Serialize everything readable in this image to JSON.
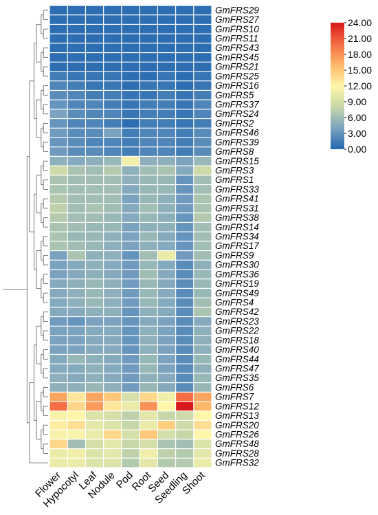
{
  "chart_data": {
    "type": "heatmap",
    "title": "",
    "columns": [
      "Flower",
      "Hypocotyl",
      "Leaf",
      "Nodule",
      "Pod",
      "Root",
      "Seed",
      "Seedling",
      "Shoot"
    ],
    "rows": [
      "GmFRS29",
      "GmFRS27",
      "GmFRS10",
      "GmFRS11",
      "GmFRS43",
      "GmFRS45",
      "GmFRS21",
      "GmFRS25",
      "GmFRS16",
      "GmFRS5",
      "GmFRS37",
      "GmFRS24",
      "GmFRS2",
      "GmFRS46",
      "GmFRS39",
      "GmFRS8",
      "GmFRS15",
      "GmFRS3",
      "GmFRS1",
      "GmFRS33",
      "GmFRS41",
      "GmFRS31",
      "GmFRS38",
      "GmFRS14",
      "GmFRS34",
      "GmFRS17",
      "GmFRS9",
      "GmFRS30",
      "GmFRS36",
      "GmFRS19",
      "GmFRS49",
      "GmFRS4",
      "GmFRS42",
      "GmFRS23",
      "GmFRS22",
      "GmFRS18",
      "GmFRS40",
      "GmFRS44",
      "GmFRS47",
      "GmFRS35",
      "GmFRS6",
      "GmFRS7",
      "GmFRS12",
      "GmFRS13",
      "GmFRS20",
      "GmFRS26",
      "GmFRS48",
      "GmFRS28",
      "GmFRS32"
    ],
    "values": [
      [
        0.5,
        0.5,
        0.5,
        0.5,
        0.5,
        0.5,
        0.5,
        0.5,
        0.5
      ],
      [
        0.5,
        0.5,
        0.5,
        0.5,
        0.5,
        0.5,
        0.5,
        0.5,
        0.5
      ],
      [
        0.5,
        0.5,
        0.5,
        0.5,
        0.5,
        0.5,
        0.5,
        0.5,
        0.5
      ],
      [
        0.5,
        0.5,
        0.5,
        0.5,
        0.5,
        0.5,
        0.5,
        0.5,
        0.5
      ],
      [
        0.5,
        0.5,
        0.5,
        0.5,
        0.5,
        0.5,
        0.5,
        0.5,
        0.5
      ],
      [
        0.5,
        0.5,
        0.5,
        0.5,
        0.5,
        0.5,
        0.5,
        0.5,
        0.5
      ],
      [
        0.5,
        0.5,
        0.5,
        0.5,
        0.5,
        0.5,
        0.5,
        0.5,
        0.5
      ],
      [
        1.5,
        1.0,
        1.0,
        1.0,
        0.5,
        0.5,
        1.0,
        0.5,
        1.0
      ],
      [
        2.0,
        1.5,
        1.0,
        1.0,
        0.5,
        1.0,
        1.0,
        0.5,
        1.0
      ],
      [
        2.5,
        2.0,
        1.5,
        1.5,
        1.0,
        1.0,
        1.5,
        1.0,
        1.5
      ],
      [
        3.0,
        2.0,
        2.0,
        1.5,
        1.0,
        1.5,
        1.5,
        1.0,
        2.0
      ],
      [
        4.0,
        2.5,
        2.0,
        2.0,
        1.0,
        1.5,
        1.5,
        1.0,
        2.0
      ],
      [
        3.0,
        2.0,
        2.0,
        1.5,
        0.5,
        1.5,
        1.5,
        1.0,
        1.5
      ],
      [
        3.5,
        2.5,
        2.5,
        4.0,
        1.5,
        2.0,
        2.0,
        1.5,
        2.5
      ],
      [
        3.0,
        2.5,
        2.0,
        2.0,
        1.5,
        2.0,
        2.0,
        1.5,
        2.5
      ],
      [
        3.5,
        2.5,
        2.5,
        2.0,
        1.5,
        2.0,
        2.0,
        1.5,
        2.5
      ],
      [
        5.0,
        4.5,
        5.0,
        5.5,
        11.0,
        5.0,
        5.0,
        4.0,
        5.5
      ],
      [
        8.5,
        6.5,
        6.0,
        7.0,
        5.0,
        6.0,
        6.5,
        4.5,
        8.5
      ],
      [
        6.5,
        6.0,
        6.0,
        6.0,
        5.0,
        5.5,
        5.5,
        3.0,
        6.0
      ],
      [
        6.5,
        6.0,
        6.0,
        6.0,
        4.5,
        5.5,
        5.5,
        3.0,
        6.0
      ],
      [
        7.0,
        6.0,
        6.0,
        6.0,
        4.0,
        5.5,
        5.0,
        3.5,
        6.5
      ],
      [
        7.5,
        6.0,
        6.5,
        6.0,
        4.5,
        6.0,
        5.0,
        3.5,
        6.5
      ],
      [
        7.0,
        6.0,
        6.0,
        5.5,
        4.5,
        5.5,
        5.0,
        3.0,
        7.0
      ],
      [
        6.5,
        6.0,
        5.5,
        5.5,
        4.0,
        5.0,
        5.0,
        3.0,
        6.0
      ],
      [
        6.5,
        5.5,
        5.5,
        5.0,
        4.0,
        5.5,
        4.5,
        3.0,
        6.0
      ],
      [
        6.5,
        6.0,
        5.5,
        5.0,
        4.0,
        5.0,
        4.5,
        3.0,
        6.0
      ],
      [
        4.0,
        6.5,
        5.0,
        5.0,
        3.0,
        6.0,
        10.5,
        3.5,
        6.0
      ],
      [
        4.0,
        4.5,
        5.0,
        4.5,
        3.5,
        5.5,
        4.5,
        2.5,
        5.0
      ],
      [
        4.0,
        4.5,
        5.0,
        4.5,
        3.5,
        6.0,
        4.5,
        2.5,
        5.5
      ],
      [
        4.5,
        5.0,
        5.5,
        5.0,
        3.5,
        5.5,
        4.5,
        2.5,
        5.5
      ],
      [
        4.5,
        5.0,
        5.5,
        5.0,
        3.5,
        5.5,
        4.5,
        2.5,
        5.5
      ],
      [
        4.5,
        5.0,
        5.5,
        5.0,
        3.5,
        5.5,
        4.5,
        2.5,
        6.0
      ],
      [
        4.5,
        4.5,
        5.0,
        5.0,
        3.0,
        5.0,
        4.5,
        2.5,
        6.5
      ],
      [
        3.5,
        3.0,
        4.0,
        4.0,
        3.0,
        4.5,
        4.0,
        2.5,
        4.5
      ],
      [
        4.0,
        4.0,
        4.5,
        4.5,
        3.0,
        5.0,
        4.0,
        2.5,
        5.0
      ],
      [
        4.0,
        4.0,
        4.5,
        4.5,
        3.0,
        5.0,
        4.0,
        2.5,
        5.0
      ],
      [
        4.0,
        4.0,
        4.5,
        4.5,
        3.0,
        5.0,
        4.0,
        2.5,
        5.0
      ],
      [
        4.5,
        5.5,
        5.0,
        4.5,
        3.5,
        5.5,
        4.0,
        2.5,
        5.5
      ],
      [
        4.5,
        4.5,
        5.0,
        4.5,
        3.5,
        5.5,
        4.0,
        2.5,
        5.0
      ],
      [
        5.0,
        4.5,
        5.0,
        4.5,
        3.5,
        5.0,
        4.5,
        2.5,
        5.5
      ],
      [
        5.0,
        5.0,
        5.5,
        5.0,
        3.5,
        5.5,
        4.5,
        2.5,
        5.5
      ],
      [
        17.0,
        13.0,
        17.0,
        15.0,
        9.0,
        14.0,
        11.0,
        20.0,
        17.0
      ],
      [
        20.0,
        14.0,
        17.5,
        13.0,
        10.5,
        18.0,
        12.0,
        24.0,
        16.0
      ],
      [
        11.5,
        12.0,
        9.5,
        9.0,
        7.5,
        10.0,
        8.0,
        8.5,
        12.0
      ],
      [
        12.5,
        13.5,
        10.0,
        9.5,
        8.0,
        10.5,
        14.5,
        8.5,
        13.5
      ],
      [
        11.5,
        11.5,
        10.5,
        14.0,
        9.0,
        15.0,
        9.0,
        8.0,
        12.0
      ],
      [
        14.0,
        6.0,
        9.0,
        10.0,
        8.0,
        9.0,
        6.5,
        6.0,
        9.5
      ],
      [
        10.5,
        11.0,
        9.5,
        10.0,
        7.5,
        11.0,
        7.5,
        7.0,
        10.0
      ],
      [
        10.5,
        10.5,
        9.5,
        9.5,
        7.0,
        10.0,
        7.0,
        7.0,
        10.5
      ]
    ],
    "colorbar": {
      "min": 0,
      "max": 24,
      "tick_labels": [
        "24.00",
        "21.00",
        "18.00",
        "15.00",
        "12.00",
        "9.00",
        "6.00",
        "3.00",
        "0.00"
      ],
      "colors": [
        "#2266b0",
        "#7ba3c0",
        "#c7d7a8",
        "#fff6aa",
        "#fdb769",
        "#f46d43",
        "#d7191c"
      ]
    },
    "dendrogram": true
  }
}
